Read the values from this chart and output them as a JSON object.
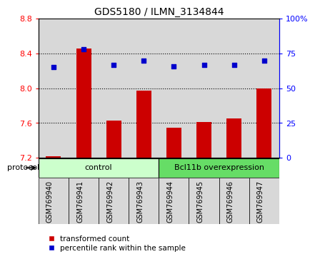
{
  "title": "GDS5180 / ILMN_3134844",
  "samples": [
    "GSM769940",
    "GSM769941",
    "GSM769942",
    "GSM769943",
    "GSM769944",
    "GSM769945",
    "GSM769946",
    "GSM769947"
  ],
  "transformed_count": [
    7.22,
    8.46,
    7.63,
    7.97,
    7.55,
    7.61,
    7.65,
    8.0
  ],
  "percentile_rank": [
    65,
    78,
    67,
    70,
    66,
    67,
    67,
    70
  ],
  "ylim_left": [
    7.2,
    8.8
  ],
  "ylim_right": [
    0,
    100
  ],
  "yticks_left": [
    7.2,
    7.6,
    8.0,
    8.4,
    8.8
  ],
  "yticks_right": [
    0,
    25,
    50,
    75,
    100
  ],
  "ytick_labels_right": [
    "0",
    "25",
    "50",
    "75",
    "100%"
  ],
  "bar_color": "#cc0000",
  "dot_color": "#0000cc",
  "bar_bottom": 7.2,
  "protocol_groups": [
    {
      "label": "control",
      "start": 0,
      "end": 3,
      "color": "#ccffcc"
    },
    {
      "label": "Bcl11b overexpression",
      "start": 4,
      "end": 7,
      "color": "#66dd66"
    }
  ],
  "protocol_label": "protocol",
  "legend_items": [
    {
      "label": "transformed count",
      "color": "#cc0000"
    },
    {
      "label": "percentile rank within the sample",
      "color": "#0000cc"
    }
  ],
  "bg_color": "#ffffff",
  "panel_bg": "#d8d8d8",
  "dotted_ticks": [
    7.6,
    8.0,
    8.4
  ]
}
